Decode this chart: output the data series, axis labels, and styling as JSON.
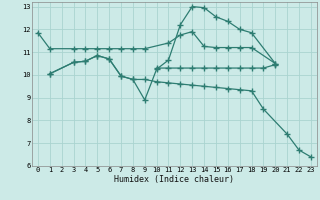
{
  "background_color": "#cceae7",
  "grid_color": "#aad4d0",
  "line_color": "#2e7d72",
  "xlabel": "Humidex (Indice chaleur)",
  "xlim": [
    -0.5,
    23.5
  ],
  "ylim": [
    6,
    13.2
  ],
  "xticks": [
    0,
    1,
    2,
    3,
    4,
    5,
    6,
    7,
    8,
    9,
    10,
    11,
    12,
    13,
    14,
    15,
    16,
    17,
    18,
    19,
    20,
    21,
    22,
    23
  ],
  "yticks": [
    6,
    7,
    8,
    9,
    10,
    11,
    12,
    13
  ],
  "series": [
    {
      "x": [
        0,
        1,
        3,
        4,
        5,
        6,
        7,
        8,
        9,
        11,
        12,
        13,
        14,
        15,
        16,
        17,
        18,
        20
      ],
      "y": [
        11.85,
        11.15,
        11.15,
        11.15,
        11.15,
        11.15,
        11.15,
        11.15,
        11.15,
        11.4,
        11.75,
        11.9,
        11.25,
        11.2,
        11.2,
        11.2,
        11.2,
        10.5
      ]
    },
    {
      "x": [
        1,
        3,
        4,
        5,
        6,
        7,
        8,
        9,
        10,
        11,
        12,
        13,
        14,
        15,
        16,
        17,
        18,
        20
      ],
      "y": [
        10.05,
        10.55,
        10.6,
        10.85,
        10.7,
        9.95,
        9.8,
        8.9,
        10.25,
        10.65,
        12.2,
        13.0,
        12.95,
        12.55,
        12.35,
        12.0,
        11.85,
        10.5
      ]
    },
    {
      "x": [
        1,
        3,
        4,
        5,
        6,
        7,
        8,
        9,
        10,
        11,
        12,
        13,
        14,
        15,
        16,
        17,
        18,
        19,
        21,
        22,
        23
      ],
      "y": [
        10.05,
        10.55,
        10.6,
        10.85,
        10.7,
        9.95,
        9.8,
        9.8,
        9.7,
        9.65,
        9.6,
        9.55,
        9.5,
        9.45,
        9.4,
        9.35,
        9.3,
        8.5,
        7.4,
        6.7,
        6.4
      ]
    },
    {
      "x": [
        10,
        11,
        12,
        13,
        14,
        15,
        16,
        17,
        18,
        19,
        20
      ],
      "y": [
        10.3,
        10.3,
        10.3,
        10.3,
        10.3,
        10.3,
        10.3,
        10.3,
        10.3,
        10.3,
        10.45
      ]
    }
  ]
}
